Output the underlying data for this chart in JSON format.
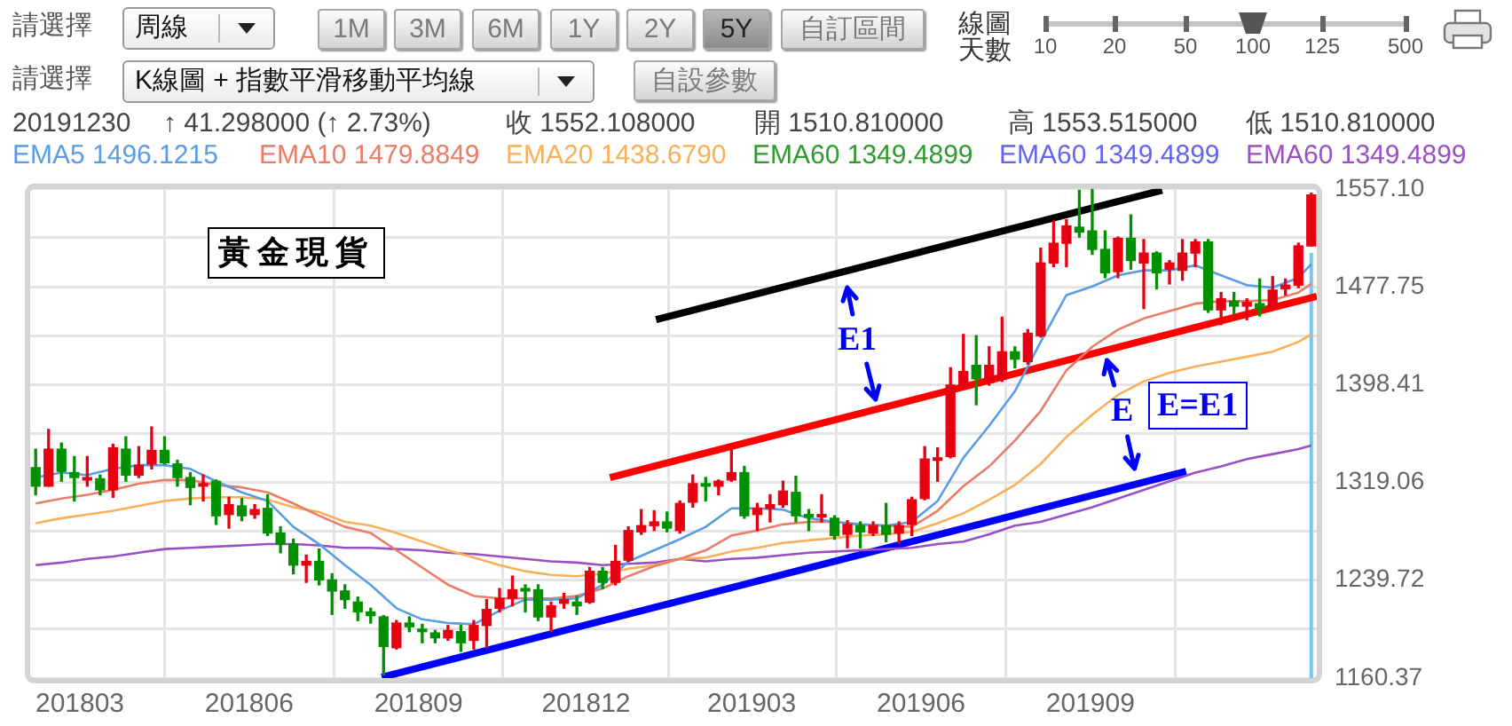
{
  "chart_data": {
    "type": "candlestick",
    "title": "黃金現貨",
    "x": [
      "2018-02-05",
      "2018-02-12",
      "2018-02-19",
      "2018-02-26",
      "2018-03-05",
      "2018-03-12",
      "2018-03-19",
      "2018-03-26",
      "2018-04-02",
      "2018-04-09",
      "2018-04-16",
      "2018-04-23",
      "2018-04-30",
      "2018-05-07",
      "2018-05-14",
      "2018-05-21",
      "2018-05-28",
      "2018-06-04",
      "2018-06-11",
      "2018-06-18",
      "2018-06-25",
      "2018-07-02",
      "2018-07-09",
      "2018-07-16",
      "2018-07-23",
      "2018-07-30",
      "2018-08-06",
      "2018-08-13",
      "2018-08-20",
      "2018-08-27",
      "2018-09-03",
      "2018-09-10",
      "2018-09-17",
      "2018-09-24",
      "2018-10-01",
      "2018-10-08",
      "2018-10-15",
      "2018-10-22",
      "2018-10-29",
      "2018-11-05",
      "2018-11-12",
      "2018-11-19",
      "2018-11-26",
      "2018-12-03",
      "2018-12-10",
      "2018-12-17",
      "2018-12-24",
      "2018-12-31",
      "2019-01-07",
      "2019-01-14",
      "2019-01-21",
      "2019-01-28",
      "2019-02-04",
      "2019-02-11",
      "2019-02-18",
      "2019-02-25",
      "2019-03-04",
      "2019-03-11",
      "2019-03-18",
      "2019-03-25",
      "2019-04-01",
      "2019-04-08",
      "2019-04-15",
      "2019-04-22",
      "2019-04-29",
      "2019-05-06",
      "2019-05-13",
      "2019-05-20",
      "2019-05-27",
      "2019-06-03",
      "2019-06-10",
      "2019-06-17",
      "2019-06-24",
      "2019-07-01",
      "2019-07-08",
      "2019-07-15",
      "2019-07-22",
      "2019-07-29",
      "2019-08-05",
      "2019-08-12",
      "2019-08-19",
      "2019-08-26",
      "2019-09-02",
      "2019-09-09",
      "2019-09-16",
      "2019-09-23",
      "2019-09-30",
      "2019-10-07",
      "2019-10-14",
      "2019-10-21",
      "2019-10-28",
      "2019-11-04",
      "2019-11-11",
      "2019-11-18",
      "2019-11-25",
      "2019-12-02",
      "2019-12-09",
      "2019-12-16",
      "2019-12-23",
      "2019-12-30"
    ],
    "ohlc": [
      [
        1331,
        1346,
        1309,
        1316
      ],
      [
        1316,
        1362,
        1316,
        1346
      ],
      [
        1346,
        1351,
        1320,
        1328
      ],
      [
        1327,
        1340,
        1304,
        1323
      ],
      [
        1321,
        1340,
        1316,
        1323
      ],
      [
        1322,
        1325,
        1309,
        1313
      ],
      [
        1313,
        1350,
        1307,
        1347
      ],
      [
        1346,
        1356,
        1320,
        1325
      ],
      [
        1325,
        1348,
        1323,
        1333
      ],
      [
        1334,
        1364,
        1330,
        1345
      ],
      [
        1345,
        1356,
        1334,
        1335
      ],
      [
        1334,
        1337,
        1316,
        1323
      ],
      [
        1323,
        1327,
        1301,
        1315
      ],
      [
        1316,
        1325,
        1304,
        1318
      ],
      [
        1320,
        1321,
        1285,
        1292
      ],
      [
        1293,
        1307,
        1282,
        1301
      ],
      [
        1300,
        1306,
        1288,
        1292
      ],
      [
        1293,
        1301,
        1290,
        1297
      ],
      [
        1298,
        1309,
        1276,
        1278
      ],
      [
        1278,
        1283,
        1262,
        1269
      ],
      [
        1269,
        1273,
        1245,
        1252
      ],
      [
        1252,
        1260,
        1238,
        1255
      ],
      [
        1255,
        1265,
        1236,
        1240
      ],
      [
        1240,
        1245,
        1212,
        1231
      ],
      [
        1231,
        1236,
        1217,
        1224
      ],
      [
        1222,
        1226,
        1207,
        1214
      ],
      [
        1214,
        1217,
        1205,
        1211
      ],
      [
        1210,
        1211,
        1163,
        1186
      ],
      [
        1185,
        1207,
        1184,
        1205
      ],
      [
        1205,
        1210,
        1198,
        1202
      ],
      [
        1200,
        1204,
        1189,
        1198
      ],
      [
        1197,
        1199,
        1189,
        1193
      ],
      [
        1193,
        1203,
        1191,
        1199
      ],
      [
        1198,
        1203,
        1182,
        1189
      ],
      [
        1191,
        1207,
        1184,
        1203
      ],
      [
        1203,
        1224,
        1185,
        1216
      ],
      [
        1217,
        1233,
        1214,
        1225
      ],
      [
        1225,
        1243,
        1219,
        1232
      ],
      [
        1233,
        1236,
        1214,
        1231
      ],
      [
        1232,
        1236,
        1207,
        1210
      ],
      [
        1210,
        1222,
        1198,
        1219
      ],
      [
        1221,
        1229,
        1217,
        1224
      ],
      [
        1222,
        1227,
        1212,
        1219
      ],
      [
        1222,
        1250,
        1221,
        1247
      ],
      [
        1247,
        1250,
        1233,
        1238
      ],
      [
        1238,
        1268,
        1236,
        1255
      ],
      [
        1256,
        1283,
        1255,
        1280
      ],
      [
        1279,
        1297,
        1277,
        1284
      ],
      [
        1284,
        1296,
        1280,
        1287
      ],
      [
        1287,
        1295,
        1279,
        1282
      ],
      [
        1280,
        1304,
        1278,
        1302
      ],
      [
        1303,
        1325,
        1299,
        1318
      ],
      [
        1318,
        1323,
        1304,
        1316
      ],
      [
        1316,
        1321,
        1309,
        1320
      ],
      [
        1321,
        1346,
        1320,
        1327
      ],
      [
        1327,
        1332,
        1290,
        1292
      ],
      [
        1293,
        1302,
        1280,
        1298
      ],
      [
        1298,
        1309,
        1287,
        1301
      ],
      [
        1301,
        1320,
        1299,
        1312
      ],
      [
        1311,
        1324,
        1287,
        1292
      ],
      [
        1293,
        1297,
        1280,
        1291
      ],
      [
        1291,
        1309,
        1287,
        1293
      ],
      [
        1290,
        1292,
        1273,
        1276
      ],
      [
        1277,
        1288,
        1266,
        1285
      ],
      [
        1284,
        1287,
        1266,
        1279
      ],
      [
        1278,
        1287,
        1276,
        1284
      ],
      [
        1284,
        1302,
        1271,
        1277
      ],
      [
        1278,
        1287,
        1270,
        1284
      ],
      [
        1285,
        1307,
        1276,
        1305
      ],
      [
        1306,
        1348,
        1305,
        1338
      ],
      [
        1337,
        1347,
        1320,
        1339
      ],
      [
        1340,
        1412,
        1339,
        1398
      ],
      [
        1398,
        1439,
        1396,
        1409
      ],
      [
        1414,
        1438,
        1382,
        1403
      ],
      [
        1400,
        1429,
        1398,
        1414
      ],
      [
        1403,
        1453,
        1401,
        1425
      ],
      [
        1425,
        1429,
        1412,
        1419
      ],
      [
        1417,
        1443,
        1415,
        1440
      ],
      [
        1438,
        1509,
        1437,
        1497
      ],
      [
        1497,
        1531,
        1494,
        1513
      ],
      [
        1513,
        1532,
        1494,
        1527
      ],
      [
        1526,
        1556,
        1518,
        1522
      ],
      [
        1523,
        1557,
        1504,
        1508
      ],
      [
        1508,
        1523,
        1485,
        1489
      ],
      [
        1490,
        1518,
        1485,
        1517
      ],
      [
        1517,
        1536,
        1492,
        1499
      ],
      [
        1497,
        1516,
        1460,
        1505
      ],
      [
        1505,
        1506,
        1476,
        1489
      ],
      [
        1492,
        1499,
        1480,
        1497
      ],
      [
        1491,
        1516,
        1483,
        1505
      ],
      [
        1505,
        1516,
        1494,
        1514
      ],
      [
        1514,
        1516,
        1457,
        1459
      ],
      [
        1459,
        1473,
        1447,
        1468
      ],
      [
        1466,
        1473,
        1456,
        1462
      ],
      [
        1462,
        1468,
        1451,
        1465
      ],
      [
        1464,
        1484,
        1454,
        1460
      ],
      [
        1462,
        1486,
        1460,
        1475
      ],
      [
        1476,
        1484,
        1471,
        1479
      ],
      [
        1479,
        1513,
        1477,
        1510.81
      ],
      [
        1510.81,
        1553.515,
        1510.81,
        1552.108
      ]
    ],
    "colors": [
      "#009000",
      "#e60012",
      "#009000",
      "#009000",
      "#e60012",
      "#009000",
      "#e60012",
      "#009000",
      "#e60012",
      "#e60012",
      "#009000",
      "#009000",
      "#009000",
      "#e60012",
      "#009000",
      "#e60012",
      "#009000",
      "#e60012",
      "#009000",
      "#009000",
      "#009000",
      "#e60012",
      "#009000",
      "#009000",
      "#009000",
      "#009000",
      "#009000",
      "#009000",
      "#e60012",
      "#009000",
      "#009000",
      "#009000",
      "#e60012",
      "#009000",
      "#e60012",
      "#e60012",
      "#e60012",
      "#e60012",
      "#009000",
      "#009000",
      "#e60012",
      "#e60012",
      "#009000",
      "#e60012",
      "#009000",
      "#e60012",
      "#e60012",
      "#e60012",
      "#e60012",
      "#009000",
      "#e60012",
      "#e60012",
      "#009000",
      "#e60012",
      "#e60012",
      "#009000",
      "#e60012",
      "#e60012",
      "#e60012",
      "#009000",
      "#009000",
      "#e60012",
      "#009000",
      "#e60012",
      "#009000",
      "#e60012",
      "#009000",
      "#e60012",
      "#e60012",
      "#e60012",
      "#e60012",
      "#e60012",
      "#e60012",
      "#009000",
      "#e60012",
      "#e60012",
      "#009000",
      "#e60012",
      "#e60012",
      "#e60012",
      "#e60012",
      "#009000",
      "#009000",
      "#009000",
      "#e60012",
      "#009000",
      "#e60012",
      "#009000",
      "#e60012",
      "#e60012",
      "#e60012",
      "#009000",
      "#e60012",
      "#009000",
      "#e60012",
      "#009000",
      "#e60012",
      "#e60012",
      "#e60012",
      "#e60012"
    ],
    "series": [
      {
        "type": "line",
        "name": "EMA5 1496.1215",
        "color": "#5a9de6",
        "x": [
          "2018-02-05",
          "2018-02-19",
          "2018-03-05",
          "2018-03-19",
          "2018-04-02",
          "2018-04-16",
          "2018-04-30",
          "2018-05-14",
          "2018-05-28",
          "2018-06-11",
          "2018-06-25",
          "2018-07-09",
          "2018-07-23",
          "2018-08-06",
          "2018-08-20",
          "2018-09-03",
          "2018-09-17",
          "2018-10-01",
          "2018-10-15",
          "2018-10-29",
          "2018-11-12",
          "2018-11-26",
          "2018-12-10",
          "2018-12-24",
          "2019-01-07",
          "2019-01-21",
          "2019-02-04",
          "2019-02-18",
          "2019-03-04",
          "2019-03-18",
          "2019-04-01",
          "2019-04-15",
          "2019-04-29",
          "2019-05-13",
          "2019-05-27",
          "2019-06-10",
          "2019-06-24",
          "2019-07-08",
          "2019-07-22",
          "2019-08-05",
          "2019-08-19",
          "2019-09-02",
          "2019-09-16",
          "2019-09-30",
          "2019-10-14",
          "2019-10-28",
          "2019-11-11",
          "2019-11-25",
          "2019-12-09",
          "2019-12-23",
          "2019-12-30"
        ],
        "values": [
          1323,
          1327,
          1325,
          1330,
          1333,
          1333,
          1330,
          1320,
          1311,
          1304,
          1283,
          1269,
          1252,
          1236,
          1217,
          1208,
          1205,
          1204,
          1215,
          1224,
          1224,
          1225,
          1236,
          1255,
          1264,
          1273,
          1283,
          1298,
          1298,
          1297,
          1290,
          1287,
          1285,
          1284,
          1287,
          1304,
          1339,
          1365,
          1393,
          1433,
          1471,
          1478,
          1487,
          1491,
          1491,
          1495,
          1487,
          1479,
          1477,
          1485,
          1496
        ]
      },
      {
        "type": "line",
        "name": "EMA10 1479.8849",
        "color": "#e97d68",
        "x": [
          "2018-02-05",
          "2018-02-19",
          "2018-03-05",
          "2018-03-19",
          "2018-04-02",
          "2018-04-16",
          "2018-04-30",
          "2018-05-14",
          "2018-05-28",
          "2018-06-11",
          "2018-06-25",
          "2018-07-09",
          "2018-07-23",
          "2018-08-06",
          "2018-08-20",
          "2018-09-03",
          "2018-09-17",
          "2018-10-01",
          "2018-10-15",
          "2018-10-29",
          "2018-11-12",
          "2018-11-26",
          "2018-12-10",
          "2018-12-24",
          "2019-01-07",
          "2019-01-21",
          "2019-02-04",
          "2019-02-18",
          "2019-03-04",
          "2019-03-18",
          "2019-04-01",
          "2019-04-15",
          "2019-04-29",
          "2019-05-13",
          "2019-05-27",
          "2019-06-10",
          "2019-06-24",
          "2019-07-08",
          "2019-07-22",
          "2019-08-05",
          "2019-08-19",
          "2019-09-02",
          "2019-09-16",
          "2019-09-30",
          "2019-10-14",
          "2019-10-28",
          "2019-11-11",
          "2019-11-25",
          "2019-12-09",
          "2019-12-23",
          "2019-12-30"
        ],
        "values": [
          1302,
          1306,
          1309,
          1313,
          1318,
          1321,
          1321,
          1317,
          1315,
          1311,
          1302,
          1292,
          1283,
          1278,
          1264,
          1250,
          1236,
          1227,
          1225,
          1225,
          1225,
          1227,
          1233,
          1243,
          1251,
          1257,
          1264,
          1276,
          1280,
          1285,
          1287,
          1287,
          1285,
          1284,
          1283,
          1296,
          1316,
          1332,
          1353,
          1377,
          1410,
          1429,
          1443,
          1452,
          1458,
          1464,
          1466,
          1466,
          1467,
          1473,
          1480
        ]
      },
      {
        "type": "line",
        "name": "EMA20 1438.6790",
        "color": "#f9b058",
        "x": [
          "2018-02-05",
          "2018-02-19",
          "2018-03-05",
          "2018-03-19",
          "2018-04-02",
          "2018-04-16",
          "2018-04-30",
          "2018-05-14",
          "2018-05-28",
          "2018-06-11",
          "2018-06-25",
          "2018-07-09",
          "2018-07-23",
          "2018-08-06",
          "2018-08-20",
          "2018-09-03",
          "2018-09-17",
          "2018-10-01",
          "2018-10-15",
          "2018-10-29",
          "2018-11-12",
          "2018-11-26",
          "2018-12-10",
          "2018-12-24",
          "2019-01-07",
          "2019-01-21",
          "2019-02-04",
          "2019-02-18",
          "2019-03-04",
          "2019-03-18",
          "2019-04-01",
          "2019-04-15",
          "2019-04-29",
          "2019-05-13",
          "2019-05-27",
          "2019-06-10",
          "2019-06-24",
          "2019-07-08",
          "2019-07-22",
          "2019-08-05",
          "2019-08-19",
          "2019-09-02",
          "2019-09-16",
          "2019-09-30",
          "2019-10-14",
          "2019-10-28",
          "2019-11-11",
          "2019-11-25",
          "2019-12-09",
          "2019-12-23",
          "2019-12-30"
        ],
        "values": [
          1286,
          1290,
          1293,
          1296,
          1300,
          1304,
          1306,
          1307,
          1307,
          1305,
          1299,
          1295,
          1287,
          1284,
          1278,
          1271,
          1264,
          1258,
          1252,
          1247,
          1244,
          1243,
          1245,
          1249,
          1252,
          1257,
          1258,
          1263,
          1266,
          1270,
          1272,
          1274,
          1276,
          1277,
          1279,
          1286,
          1294,
          1305,
          1317,
          1334,
          1356,
          1374,
          1390,
          1401,
          1408,
          1413,
          1417,
          1421,
          1425,
          1433,
          1439
        ]
      },
      {
        "type": "line",
        "name": "EMA60 1349.4899",
        "color": "#2e9b2e",
        "values": [
          null,
          null,
          null,
          null,
          null,
          null,
          null,
          null,
          null,
          null,
          null,
          null,
          null,
          null,
          null,
          null,
          null,
          null,
          null,
          null,
          null,
          null,
          null,
          null,
          null,
          null,
          null,
          null,
          null,
          null,
          null,
          null,
          null,
          null,
          null,
          null,
          null,
          null,
          null,
          null,
          null,
          null,
          null,
          null,
          null,
          null,
          null,
          null,
          null,
          null,
          null,
          null,
          null,
          null,
          null,
          null,
          null,
          null,
          null,
          null,
          null,
          null,
          null,
          null,
          null,
          null,
          null,
          null,
          null,
          null,
          null,
          null,
          null,
          null,
          null,
          null,
          null,
          null,
          null,
          null,
          null,
          null,
          null,
          null,
          null,
          null,
          null,
          null,
          null,
          null,
          null,
          null,
          null,
          null,
          null,
          null,
          null,
          null,
          null,
          null
        ]
      },
      {
        "type": "line",
        "name": "EMA60 1349.4899",
        "color": "#6464f0",
        "values": [
          null,
          null,
          null,
          null,
          null,
          null,
          null,
          null,
          null,
          null,
          null,
          null,
          null,
          null,
          null,
          null,
          null,
          null,
          null,
          null,
          null,
          null,
          null,
          null,
          null,
          null,
          null,
          null,
          null,
          null,
          null,
          null,
          null,
          null,
          null,
          null,
          null,
          null,
          null,
          null,
          null,
          null,
          null,
          null,
          null,
          null,
          null,
          null,
          null,
          null,
          null,
          null,
          null,
          null,
          null,
          null,
          null,
          null,
          null,
          null,
          null,
          null,
          null,
          null,
          null,
          null,
          null,
          null,
          null,
          null,
          null,
          null,
          null,
          null,
          null,
          null,
          null,
          null,
          null,
          null,
          null,
          null,
          null,
          null,
          null,
          null,
          null,
          null,
          null,
          null,
          null,
          null,
          null,
          null,
          null,
          null,
          null,
          null,
          null,
          null
        ]
      },
      {
        "type": "line",
        "name": "EMA60 1349.4899",
        "color": "#9a4fc4",
        "x": [
          "2018-02-05",
          "2018-02-19",
          "2018-03-05",
          "2018-03-19",
          "2018-04-02",
          "2018-04-16",
          "2018-04-30",
          "2018-05-14",
          "2018-05-28",
          "2018-06-11",
          "2018-06-25",
          "2018-07-09",
          "2018-07-23",
          "2018-08-06",
          "2018-08-20",
          "2018-09-03",
          "2018-09-17",
          "2018-10-01",
          "2018-10-15",
          "2018-10-29",
          "2018-11-12",
          "2018-11-26",
          "2018-12-10",
          "2018-12-24",
          "2019-01-07",
          "2019-01-21",
          "2019-02-04",
          "2019-02-18",
          "2019-03-04",
          "2019-03-18",
          "2019-04-01",
          "2019-04-15",
          "2019-04-29",
          "2019-05-13",
          "2019-05-27",
          "2019-06-10",
          "2019-06-24",
          "2019-07-08",
          "2019-07-22",
          "2019-08-05",
          "2019-08-19",
          "2019-09-02",
          "2019-09-16",
          "2019-09-30",
          "2019-10-14",
          "2019-10-28",
          "2019-11-11",
          "2019-11-25",
          "2019-12-09",
          "2019-12-23",
          "2019-12-30"
        ],
        "values": [
          1252,
          1254,
          1257,
          1259,
          1262,
          1265,
          1266,
          1267,
          1268,
          1269,
          1269,
          1268,
          1266,
          1266,
          1265,
          1264,
          1262,
          1261,
          1259,
          1257,
          1255,
          1254,
          1252,
          1253,
          1254,
          1257,
          1255,
          1257,
          1258,
          1260,
          1262,
          1263,
          1264,
          1265,
          1266,
          1269,
          1271,
          1277,
          1284,
          1287,
          1293,
          1299,
          1306,
          1313,
          1320,
          1327,
          1332,
          1338,
          1342,
          1346,
          1349
        ]
      },
      {
        "type": "line",
        "color": "#000000",
        "x": [
          "2019-01-08",
          "2019-10-10"
        ],
        "values": [
          1451,
          1556
        ]
      },
      {
        "type": "line",
        "color": "#ff0000",
        "x": [
          "2018-12-14",
          "2020-01-02"
        ],
        "values": [
          1323,
          1470
        ]
      },
      {
        "type": "line",
        "color": "#0000ff",
        "x": [
          "2018-08-12",
          "2019-10-23"
        ],
        "values": [
          1161,
          1328
        ]
      }
    ],
    "xlim": [
      "2018-02-02",
      "2020-01-02"
    ],
    "xticks": [
      {
        "value": "2018-03",
        "label": "201803"
      },
      {
        "value": "2018-06",
        "label": "201806"
      },
      {
        "value": "2018-09",
        "label": "201809"
      },
      {
        "value": "2018-12",
        "label": "201812"
      },
      {
        "value": "2019-03",
        "label": "201903"
      },
      {
        "value": "2019-06",
        "label": "201906"
      },
      {
        "value": "2019-09",
        "label": "201909"
      }
    ],
    "ylim": [
      1160.37,
      1557.1
    ],
    "yticks": [
      {
        "value": 1160.37,
        "label": "1160.37"
      },
      {
        "value": 1200.04,
        "label": null
      },
      {
        "value": 1239.72,
        "label": "1239.72"
      },
      {
        "value": 1279.39,
        "label": null
      },
      {
        "value": 1319.06,
        "label": "1319.06"
      },
      {
        "value": 1358.74,
        "label": null
      },
      {
        "value": 1398.41,
        "label": "1398.41"
      },
      {
        "value": 1438.08,
        "label": null
      },
      {
        "value": 1477.75,
        "label": "1477.75"
      },
      {
        "value": 1517.43,
        "label": null
      },
      {
        "value": 1557.1,
        "label": "1557.10"
      }
    ],
    "ref_lines": [
      {
        "axis": "x",
        "value": "2019-12-30",
        "color": "#7cc4f4"
      }
    ],
    "grid": true,
    "legend": "top",
    "marker": "none",
    "annotations": [
      "請選擇",
      "周線",
      "1M",
      "3M",
      "6M",
      "1Y",
      "2Y",
      "5Y",
      "自訂區間",
      "線圖天數",
      "10",
      "20",
      "50",
      "100",
      "125",
      "500",
      "請選擇",
      "K線圖 + 指數平滑移動平均線",
      "自設參數",
      "20191230",
      "↑ 41.298000 (↑ 2.73%)",
      "收 1552.108000",
      "開 1510.810000",
      "高 1553.515000",
      "低 1510.810000",
      "E1",
      "E",
      "E=E1"
    ]
  }
}
